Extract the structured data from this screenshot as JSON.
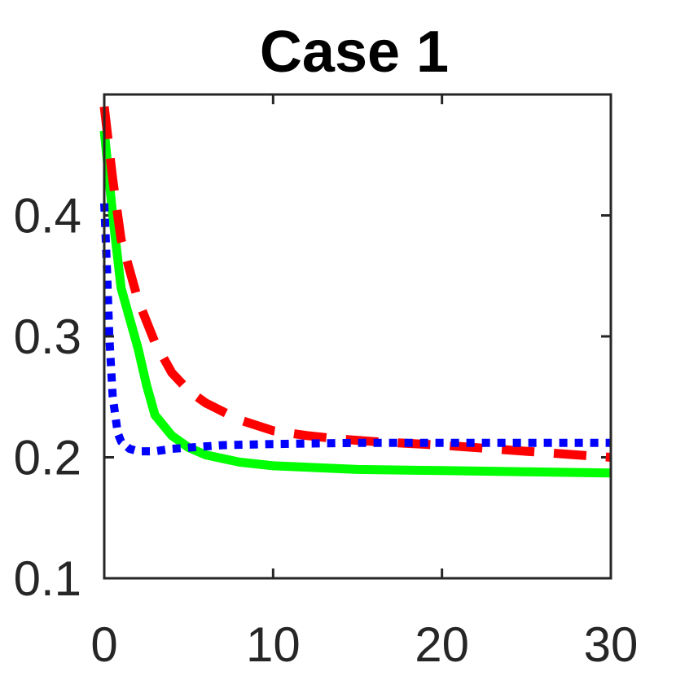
{
  "chart_data": {
    "type": "line",
    "title": "Case 1",
    "xlabel": "",
    "ylabel": "",
    "xlim": [
      0,
      30
    ],
    "ylim": [
      0.1,
      0.5
    ],
    "xticks": [
      0,
      10,
      20,
      30
    ],
    "xtick_labels": [
      "0",
      "10",
      "20",
      "30"
    ],
    "yticks": [
      0.1,
      0.2,
      0.3,
      0.4
    ],
    "ytick_labels": [
      "0.1",
      "0.2",
      "0.3",
      "0.4"
    ],
    "grid": false,
    "legend": "none",
    "series": [
      {
        "color": "#00ff00",
        "style": "solid",
        "x": [
          0,
          0.5,
          1,
          2,
          2.5,
          3,
          4,
          5,
          6,
          8,
          10,
          15,
          20,
          25,
          30
        ],
        "y": [
          0.47,
          0.4,
          0.34,
          0.29,
          0.26,
          0.235,
          0.218,
          0.208,
          0.202,
          0.196,
          0.193,
          0.19,
          0.189,
          0.188,
          0.187
        ]
      },
      {
        "color": "#ff0000",
        "style": "dashed",
        "x": [
          0,
          0.5,
          1,
          2,
          3,
          4,
          5,
          6,
          8,
          10,
          12,
          14,
          16,
          20,
          25,
          30
        ],
        "y": [
          0.49,
          0.43,
          0.38,
          0.33,
          0.295,
          0.27,
          0.255,
          0.245,
          0.231,
          0.222,
          0.218,
          0.215,
          0.213,
          0.21,
          0.205,
          0.2
        ]
      },
      {
        "color": "#0000ff",
        "style": "dotted",
        "x": [
          0,
          0.15,
          0.3,
          0.5,
          0.8,
          1,
          1.5,
          2,
          3,
          4,
          5,
          7,
          10,
          15,
          20,
          25,
          30
        ],
        "y": [
          0.41,
          0.36,
          0.3,
          0.25,
          0.22,
          0.213,
          0.207,
          0.205,
          0.205,
          0.207,
          0.208,
          0.21,
          0.211,
          0.212,
          0.212,
          0.212,
          0.212
        ]
      }
    ]
  }
}
